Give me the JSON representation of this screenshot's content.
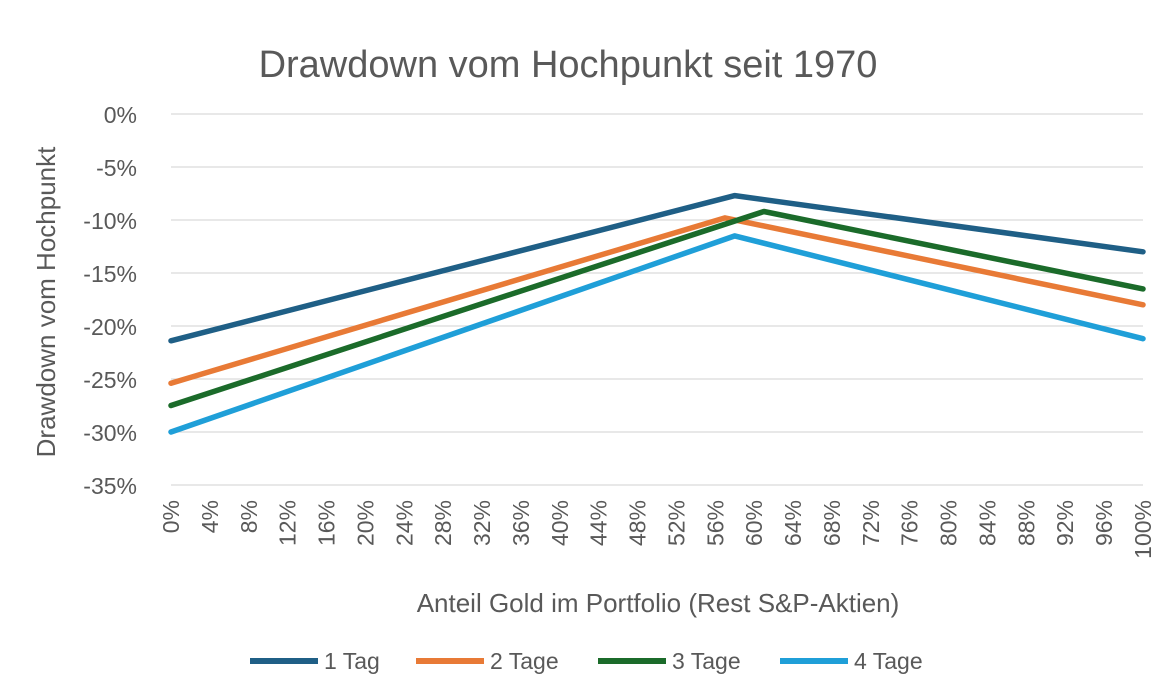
{
  "chart_data": {
    "type": "line",
    "title": "Drawdown vom Hochpunkt seit 1970",
    "xlabel": "Anteil Gold im Portfolio (Rest S&P-Aktien)",
    "ylabel": "Drawdown vom Hochpunkt",
    "x_ticks": [
      "0%",
      "4%",
      "8%",
      "12%",
      "16%",
      "20%",
      "24%",
      "28%",
      "32%",
      "36%",
      "40%",
      "44%",
      "48%",
      "52%",
      "56%",
      "60%",
      "64%",
      "68%",
      "72%",
      "76%",
      "80%",
      "84%",
      "88%",
      "92%",
      "96%",
      "100%"
    ],
    "y_ticks": [
      "0%",
      "-5%",
      "-10%",
      "-15%",
      "-20%",
      "-25%",
      "-30%",
      "-35%"
    ],
    "xlim": [
      0,
      100
    ],
    "ylim": [
      -35,
      0
    ],
    "grid": true,
    "legend_position": "bottom",
    "series": [
      {
        "name": "1 Tag",
        "color": "#1f5f86",
        "points": [
          [
            0,
            -21.4
          ],
          [
            58,
            -7.7
          ],
          [
            100,
            -13.0
          ]
        ]
      },
      {
        "name": "2 Tage",
        "color": "#e87a36",
        "points": [
          [
            0,
            -25.4
          ],
          [
            57,
            -9.8
          ],
          [
            100,
            -18.0
          ]
        ]
      },
      {
        "name": "3 Tage",
        "color": "#1b6b2a",
        "points": [
          [
            0,
            -27.5
          ],
          [
            61,
            -9.2
          ],
          [
            100,
            -16.5
          ]
        ]
      },
      {
        "name": "4 Tage",
        "color": "#1f9fd8",
        "points": [
          [
            0,
            -30.0
          ],
          [
            58,
            -11.5
          ],
          [
            100,
            -21.2
          ]
        ]
      }
    ]
  }
}
